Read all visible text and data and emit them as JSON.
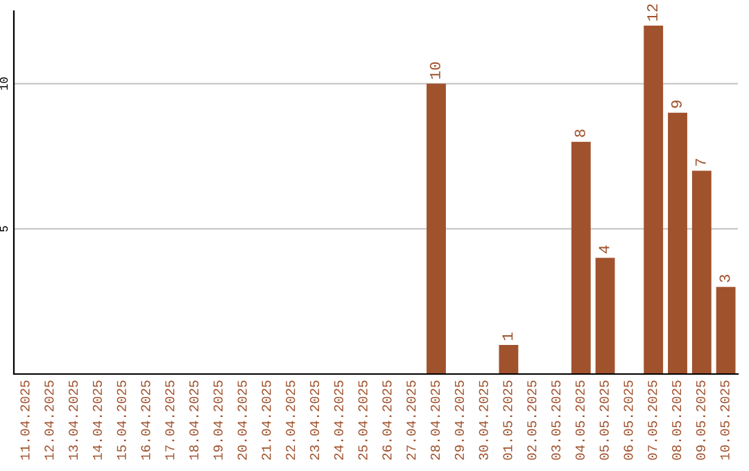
{
  "chart_data": {
    "type": "bar",
    "categories": [
      "11.04.2025",
      "12.04.2025",
      "13.04.2025",
      "14.04.2025",
      "15.04.2025",
      "16.04.2025",
      "17.04.2025",
      "18.04.2025",
      "19.04.2025",
      "20.04.2025",
      "21.04.2025",
      "22.04.2025",
      "23.04.2025",
      "24.04.2025",
      "25.04.2025",
      "26.04.2025",
      "27.04.2025",
      "28.04.2025",
      "29.04.2025",
      "30.04.2025",
      "01.05.2025",
      "02.05.2025",
      "03.05.2025",
      "04.05.2025",
      "05.05.2025",
      "06.05.2025",
      "07.05.2025",
      "08.05.2025",
      "09.05.2025",
      "10.05.2025"
    ],
    "values": [
      0,
      0,
      0,
      0,
      0,
      0,
      0,
      0,
      0,
      0,
      0,
      0,
      0,
      0,
      0,
      0,
      0,
      10,
      0,
      0,
      1,
      0,
      0,
      8,
      4,
      0,
      12,
      9,
      7,
      3
    ],
    "value_labels": [
      null,
      null,
      null,
      null,
      null,
      null,
      null,
      null,
      null,
      null,
      null,
      null,
      null,
      null,
      null,
      null,
      null,
      "10",
      null,
      null,
      "1",
      null,
      null,
      "8",
      "4",
      null,
      "12",
      "9",
      "7",
      "3"
    ],
    "color": "#a0522d",
    "ylim": [
      0,
      12.5
    ],
    "yticks": [
      5,
      10
    ],
    "grid": "y"
  }
}
